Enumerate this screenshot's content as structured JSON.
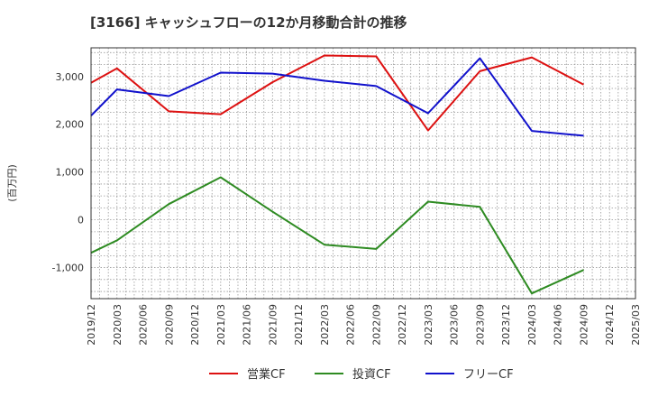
{
  "chart_data": {
    "type": "line",
    "title": "[3166]  キャッシュフローの12か月移動合計の推移",
    "ylabel": "(百万円)",
    "xlabel": "",
    "ylim": [
      -1650,
      3600
    ],
    "yticks": [
      -1000,
      0,
      1000,
      2000,
      3000
    ],
    "ytick_labels": [
      "-1,000",
      "0",
      "1,000",
      "2,000",
      "3,000"
    ],
    "categories": [
      "2019/12",
      "2020/03",
      "2020/06",
      "2020/09",
      "2020/12",
      "2021/03",
      "2021/06",
      "2021/09",
      "2021/12",
      "2022/03",
      "2022/06",
      "2022/09",
      "2022/12",
      "2023/03",
      "2023/06",
      "2023/09",
      "2023/12",
      "2024/03",
      "2024/06",
      "2024/09",
      "2024/12",
      "2025/03"
    ],
    "series": [
      {
        "name": "営業CF",
        "color": "#dd1111",
        "values": [
          2870,
          3170,
          null,
          2270,
          null,
          2210,
          null,
          2880,
          null,
          3440,
          null,
          3420,
          null,
          1870,
          null,
          3110,
          null,
          3400,
          null,
          2830,
          null,
          null
        ]
      },
      {
        "name": "投資CF",
        "color": "#2e8b22",
        "values": [
          -690,
          -430,
          null,
          330,
          null,
          890,
          null,
          170,
          null,
          -520,
          null,
          -610,
          null,
          380,
          null,
          270,
          null,
          -1540,
          null,
          -1050,
          null,
          null
        ]
      },
      {
        "name": "フリーCF",
        "color": "#1111cc",
        "values": [
          2180,
          2730,
          null,
          2590,
          null,
          3080,
          null,
          3060,
          null,
          2910,
          null,
          2800,
          null,
          2230,
          null,
          3380,
          null,
          1860,
          null,
          1760,
          null,
          null
        ]
      }
    ],
    "grid": true,
    "legend_position": "bottom-center"
  }
}
